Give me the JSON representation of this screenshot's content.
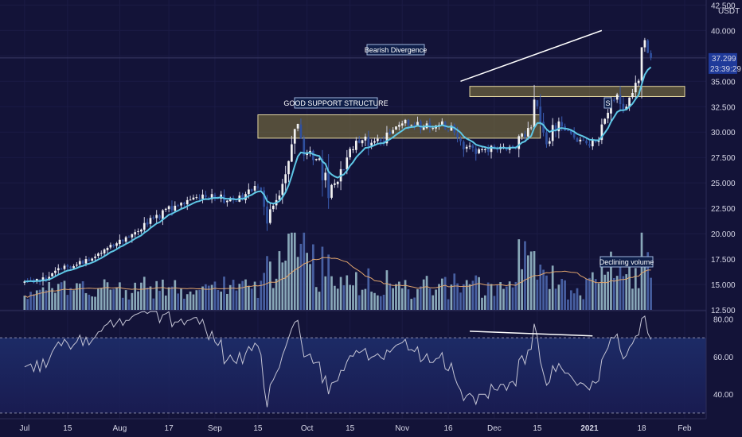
{
  "chart_data": {
    "type": "candlestick",
    "panes": [
      "price",
      "volume",
      "rsi"
    ],
    "price_axis": {
      "unit": "USDT",
      "ticks": [
        "42.500",
        "40.000",
        "37.500",
        "35.000",
        "32.500",
        "30.000",
        "27.500",
        "25.000",
        "22.500",
        "20.000",
        "17.500",
        "15.000",
        "12.500"
      ],
      "tick_values": [
        42.5,
        40,
        37.5,
        35,
        32.5,
        30,
        27.5,
        25,
        22.5,
        20,
        17.5,
        15,
        12.5
      ],
      "range": [
        12.5,
        43.0
      ]
    },
    "rsi_axis": {
      "ticks": [
        "80.00",
        "60.00",
        "40.00"
      ],
      "tick_values": [
        80,
        60,
        40
      ],
      "band": [
        70,
        30
      ],
      "range": [
        27,
        84
      ]
    },
    "time_axis": {
      "labels": [
        "Jul",
        "15",
        "Aug",
        "17",
        "Sep",
        "15",
        "Oct",
        "15",
        "Nov",
        "16",
        "Dec",
        "15",
        "2021",
        "18",
        "Feb"
      ],
      "label_days": [
        0,
        14,
        31,
        47,
        62,
        76,
        92,
        106,
        123,
        138,
        153,
        167,
        184,
        201,
        215
      ],
      "range_days": [
        -8,
        222
      ]
    },
    "price_tag": {
      "value": "37.299",
      "countdown": "23:39:29",
      "level": 37.299
    },
    "annotations": {
      "bearish_divergence": "Bearish Divergence",
      "support_structure": "GOOD SUPPORT STRUCTURE",
      "declining_volume": "Declining volume",
      "s_mark": "S"
    },
    "zones": [
      {
        "name": "support",
        "day_from": 76,
        "day_to": 168,
        "price_from": 29.4,
        "price_to": 31.7
      },
      {
        "name": "resistance",
        "day_from": 145,
        "day_to": 215,
        "price_from": 33.5,
        "price_to": 34.5
      }
    ],
    "trendlines": [
      {
        "name": "price-divergence-line",
        "day_from": 142,
        "value_from": 35.0,
        "day_to": 188,
        "value_to": 40.0,
        "pane": "price"
      },
      {
        "name": "rsi-divergence-line",
        "day_from": 145,
        "value_from": 73.5,
        "day_to": 185,
        "value_to": 71.0,
        "pane": "rsi"
      }
    ],
    "close": [
      15.3,
      15.35,
      15.4,
      15.2,
      15.55,
      15.25,
      15.7,
      15.45,
      15.75,
      16.1,
      16.35,
      16.6,
      16.5,
      16.85,
      16.75,
      16.6,
      16.8,
      16.95,
      17.3,
      17.05,
      17.5,
      17.3,
      17.55,
      17.75,
      18.05,
      18.1,
      18.45,
      18.6,
      18.9,
      18.75,
      19.05,
      19.4,
      19.25,
      19.65,
      19.65,
      19.95,
      20.15,
      20.25,
      20.4,
      21.05,
      20.9,
      21.55,
      21.5,
      21.85,
      21.5,
      22.3,
      22.45,
      22.7,
      22.3,
      22.75,
      22.75,
      23.05,
      22.9,
      23.3,
      23.35,
      23.55,
      23.6,
      23.45,
      23.85,
      23.6,
      23.35,
      23.9,
      23.6,
      23.5,
      23.85,
      23.05,
      23.25,
      23.5,
      23.3,
      23.2,
      23.75,
      23.35,
      23.9,
      24.35,
      24.2,
      24.7,
      24.6,
      24.3,
      22.65,
      21.0,
      22.4,
      22.75,
      23.3,
      23.75,
      24.9,
      25.85,
      27.15,
      28.8,
      30.3,
      30.8,
      29.4,
      27.7,
      27.9,
      28.15,
      27.25,
      27.35,
      27.4,
      25.25,
      26.0,
      23.5,
      24.8,
      24.95,
      25.1,
      26.35,
      26.3,
      27.5,
      28.35,
      28.3,
      29.15,
      28.95,
      29.2,
      29.55,
      28.6,
      28.95,
      29.1,
      29.35,
      29.1,
      28.95,
      29.95,
      29.8,
      30.2,
      30.55,
      30.7,
      30.85,
      31.2,
      30.65,
      30.7,
      30.6,
      31.0,
      30.25,
      30.45,
      30.85,
      30.4,
      30.4,
      30.65,
      30.7,
      31.05,
      30.3,
      30.2,
      30.65,
      29.95,
      29.45,
      29.1,
      28.3,
      28.55,
      28.65,
      28.45,
      27.85,
      28.3,
      28.3,
      28.3,
      28.05,
      28.65,
      28.35,
      28.3,
      28.55,
      28.55,
      28.25,
      28.55,
      28.6,
      28.4,
      29.6,
      29.85,
      29.5,
      30.4,
      30.45,
      33.2,
      32.55,
      30.95,
      29.95,
      28.8,
      29.1,
      30.7,
      30.15,
      31.05,
      30.55,
      30.15,
      30.15,
      29.85,
      29.45,
      29.05,
      29.25,
      29.15,
      28.9,
      28.65,
      29.2,
      29.05,
      29.2,
      30.75,
      31.3,
      31.9,
      33.2,
      33.15,
      33.7,
      32.75,
      32.15,
      32.5,
      33.4,
      33.85,
      34.85,
      35.05,
      38.35,
      39.05,
      37.8,
      37.3
    ],
    "volume_ticks": [
      "0",
      "1",
      "2",
      "3",
      "4"
    ],
    "volume_ma_name": "",
    "volume_unit": ""
  }
}
